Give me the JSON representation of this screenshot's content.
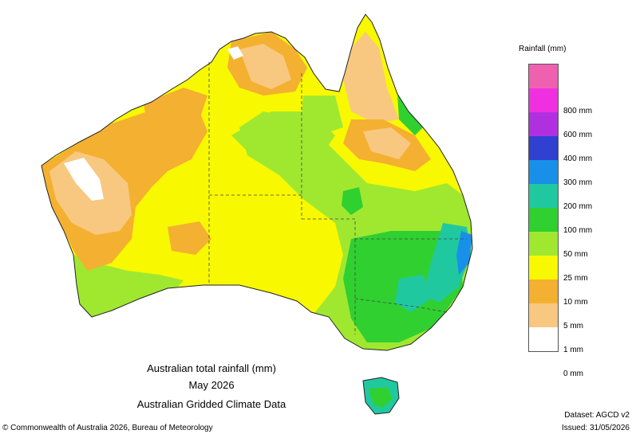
{
  "map": {
    "title": "Australian total rainfall (mm)",
    "period": "May 2026",
    "subtitle": "Australian Gridded Climate Data",
    "copyright": "© Commonwealth of Australia 2026, Bureau of Meteorology",
    "dataset": "Dataset: AGCD v2",
    "issued": "Issued: 31/05/2026"
  },
  "legend": {
    "title": "Rainfall (mm)",
    "classes": [
      {
        "label": "",
        "color": "#f060b0"
      },
      {
        "label": "800 mm",
        "color": "#f030e0"
      },
      {
        "label": "600 mm",
        "color": "#b030e0"
      },
      {
        "label": "400 mm",
        "color": "#3040d0"
      },
      {
        "label": "300 mm",
        "color": "#1890e8"
      },
      {
        "label": "200 mm",
        "color": "#20c8a0"
      },
      {
        "label": "100 mm",
        "color": "#30d030"
      },
      {
        "label": "50 mm",
        "color": "#a0e830"
      },
      {
        "label": "25 mm",
        "color": "#f8f800"
      },
      {
        "label": "10 mm",
        "color": "#f4b030"
      },
      {
        "label": "5 mm",
        "color": "#f8c880"
      },
      {
        "label": "1 mm",
        "color": "#ffffff"
      }
    ],
    "bottom_label": "0 mm"
  }
}
